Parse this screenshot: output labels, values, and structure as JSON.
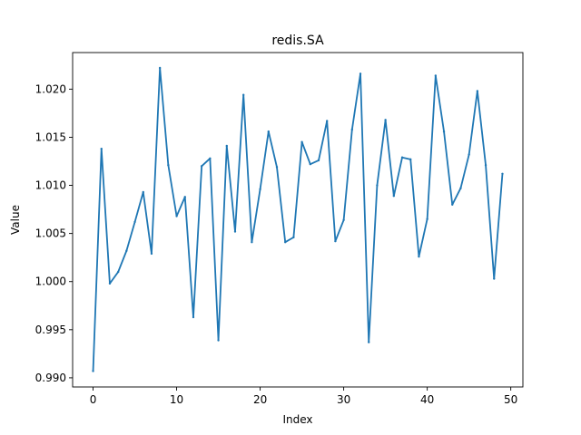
{
  "chart_data": {
    "type": "line",
    "title": "redis.SA",
    "xlabel": "Index",
    "ylabel": "Value",
    "xlim": [
      -2.45,
      51.45
    ],
    "ylim": [
      0.98905,
      1.0238
    ],
    "xticks": [
      0,
      10,
      20,
      30,
      40,
      50
    ],
    "xtick_labels": [
      "0",
      "10",
      "20",
      "30",
      "40",
      "50"
    ],
    "yticks": [
      0.99,
      0.995,
      1.0,
      1.005,
      1.01,
      1.015,
      1.02
    ],
    "ytick_labels": [
      "0.990",
      "0.995",
      "1.000",
      "1.005",
      "1.010",
      "1.015",
      "1.020"
    ],
    "grid": false,
    "line_color": "#1f77b4",
    "series": [
      {
        "x": [
          0,
          1,
          2,
          3,
          4,
          5,
          6,
          7,
          8,
          9,
          10,
          11,
          12,
          13,
          14,
          15,
          16,
          17,
          18,
          19,
          20,
          21,
          22,
          23,
          24,
          25,
          26,
          27,
          28,
          29,
          30,
          31,
          32,
          33,
          34,
          35,
          36,
          37,
          38,
          39,
          40,
          41,
          42,
          43,
          44,
          45,
          46,
          47,
          48,
          49
        ],
        "values": [
          0.9907,
          1.0138,
          0.9998,
          1.001,
          1.0032,
          1.0062,
          1.0093,
          1.0029,
          1.0222,
          1.0121,
          1.0068,
          1.0088,
          0.9963,
          1.012,
          1.0128,
          0.9939,
          1.0141,
          1.0052,
          1.0194,
          1.0041,
          1.0096,
          1.0156,
          1.0119,
          1.0041,
          1.0046,
          1.0145,
          1.0122,
          1.0126,
          1.0167,
          1.0042,
          1.0064,
          1.0158,
          1.0216,
          0.9937,
          1.01,
          1.0168,
          1.0089,
          1.0129,
          1.0127,
          1.0026,
          1.0065,
          1.0214,
          1.0156,
          1.008,
          1.0097,
          1.0132,
          1.0198,
          1.0121,
          1.0003,
          1.0112
        ]
      }
    ]
  }
}
